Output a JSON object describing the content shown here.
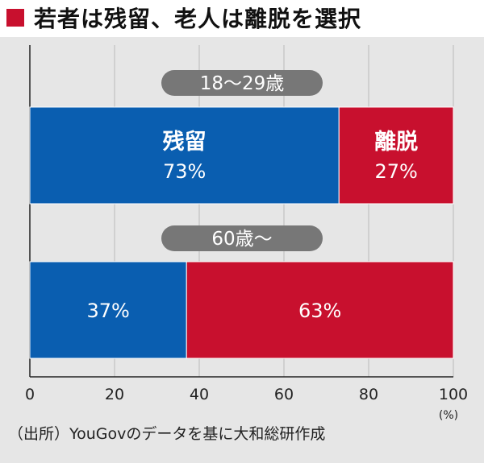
{
  "header": {
    "title": "若者は残留、老人は離脱を選択",
    "accent_color": "#c8102e"
  },
  "source_note": "（出所）YouGovのデータを基に大和総研作成",
  "chart_data": {
    "type": "bar",
    "orientation": "horizontal",
    "stacked": true,
    "title": "若者は残留、老人は離脱を選択",
    "categories": [
      "18〜29歳",
      "60歳〜"
    ],
    "series": [
      {
        "name": "残留",
        "values": [
          73,
          37
        ],
        "color": "#0a5eb0"
      },
      {
        "name": "離脱",
        "values": [
          27,
          63
        ],
        "color": "#c8102e"
      }
    ],
    "value_labels": [
      [
        "73%",
        "37%"
      ],
      [
        "27%",
        "63%"
      ]
    ],
    "series_name_labels_shown_on": "18〜29歳",
    "xlim": [
      0,
      100
    ],
    "x_ticks": [
      "0",
      "20",
      "40",
      "60",
      "80",
      "100"
    ],
    "x_unit": "(%)",
    "grid": true,
    "legend": "none",
    "colors": {
      "background": "#e6e6e6",
      "gridline": "#bbbbbb",
      "category_pill": "#777777",
      "category_pill_text": "#ffffff"
    }
  }
}
